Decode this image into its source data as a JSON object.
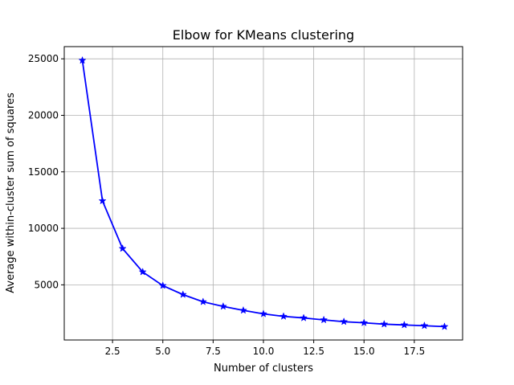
{
  "chart_data": {
    "type": "line",
    "title": "Elbow for KMeans clustering",
    "xlabel": "Number of clusters",
    "ylabel": "Average within-cluster sum of squares",
    "xlim": [
      0.1,
      19.9
    ],
    "ylim": [
      120,
      26080
    ],
    "grid": true,
    "x_ticks": [
      2.5,
      5.0,
      7.5,
      10.0,
      12.5,
      15.0,
      17.5
    ],
    "x_tick_labels": [
      "2.5",
      "5.0",
      "7.5",
      "10.0",
      "12.5",
      "15.0",
      "17.5"
    ],
    "y_ticks": [
      5000,
      10000,
      15000,
      20000,
      25000
    ],
    "y_tick_labels": [
      "5000",
      "10000",
      "15000",
      "20000",
      "25000"
    ],
    "series": [
      {
        "color": "#0000ff",
        "marker": "star",
        "x": [
          1,
          2,
          3,
          4,
          5,
          6,
          7,
          8,
          9,
          10,
          11,
          12,
          13,
          14,
          15,
          16,
          17,
          18,
          19
        ],
        "y": [
          24860,
          12430,
          8210,
          6140,
          4930,
          4140,
          3500,
          3090,
          2740,
          2430,
          2210,
          2070,
          1900,
          1740,
          1640,
          1520,
          1450,
          1380,
          1300
        ]
      }
    ]
  }
}
